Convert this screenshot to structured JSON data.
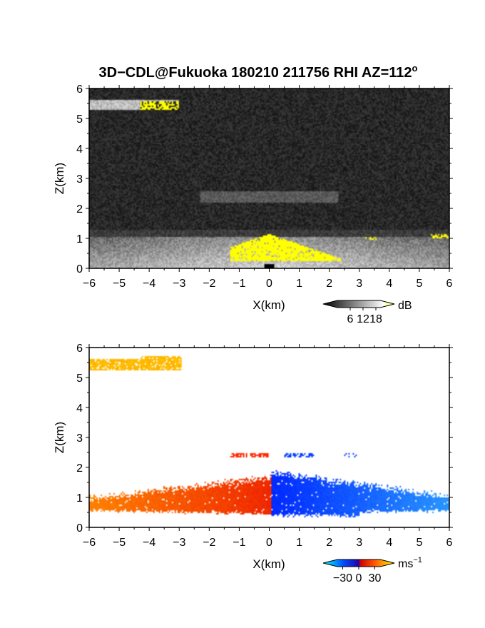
{
  "chart_data": [
    {
      "type": "heatmap",
      "title": "3D−CDL@Fukuoka 180210 211756 RHI AZ=112",
      "title_superscript": "o",
      "xlabel": "X(km)",
      "ylabel": "Z(km)",
      "xlim": [
        -6,
        6
      ],
      "ylim": [
        0,
        6
      ],
      "xticks": [
        -6,
        -5,
        -4,
        -3,
        -2,
        -1,
        0,
        1,
        2,
        3,
        4,
        5,
        6
      ],
      "yticks": [
        0,
        1,
        2,
        3,
        4,
        5,
        6
      ],
      "colorbar": {
        "unit": "dB",
        "ticks": [
          6,
          12,
          18
        ],
        "range": [
          0,
          20
        ],
        "colors": [
          "#000000",
          "#ffffff",
          "#ffff00"
        ]
      },
      "background_color": "#202020",
      "features": [
        {
          "name": "boundary layer",
          "x": [
            -6,
            6
          ],
          "z": [
            0,
            1.0
          ],
          "value_db": 12
        },
        {
          "name": "strong echo near site",
          "x": [
            -1.2,
            2.2
          ],
          "z": [
            0.3,
            1.15
          ],
          "value_db": 18
        },
        {
          "name": "upper cloud layer",
          "x": [
            -6,
            -3
          ],
          "z": [
            5.3,
            5.65
          ],
          "value_db": 18
        },
        {
          "name": "weak layer",
          "x": [
            -2.2,
            2.2
          ],
          "z": [
            2.2,
            2.5
          ],
          "value_db": 8
        }
      ]
    },
    {
      "type": "heatmap",
      "xlabel": "X(km)",
      "ylabel": "Z(km)",
      "xlim": [
        -6,
        6
      ],
      "ylim": [
        0,
        6
      ],
      "xticks": [
        -6,
        -5,
        -4,
        -3,
        -2,
        -1,
        0,
        1,
        2,
        3,
        4,
        5,
        6
      ],
      "yticks": [
        0,
        1,
        2,
        3,
        4,
        5,
        6
      ],
      "colorbar": {
        "unit": "ms",
        "unit_superscript": "−1",
        "ticks": [
          -30,
          0,
          30
        ],
        "tick_labels": [
          "−30",
          "0",
          "30"
        ],
        "range": [
          -40,
          40
        ],
        "colors": [
          "#00ffff",
          "#0044ff",
          "#0000cc",
          "#dd0000",
          "#ff6600",
          "#ffff00"
        ]
      },
      "features": [
        {
          "name": "receding flow",
          "x": [
            -6,
            0.05
          ],
          "z": [
            0.5,
            1.6
          ],
          "velocity_ms": 12
        },
        {
          "name": "approaching flow",
          "x": [
            0.05,
            6
          ],
          "z": [
            0.5,
            1.85
          ],
          "velocity_ms": -12
        },
        {
          "name": "upper cloud layer",
          "x": [
            -6,
            -3
          ],
          "z": [
            5.3,
            5.75
          ],
          "velocity_ms": 25
        },
        {
          "name": "weak layer",
          "x": [
            -1.2,
            1.4
          ],
          "z": [
            2.35,
            2.45
          ],
          "velocity_ms": 10
        }
      ]
    }
  ]
}
